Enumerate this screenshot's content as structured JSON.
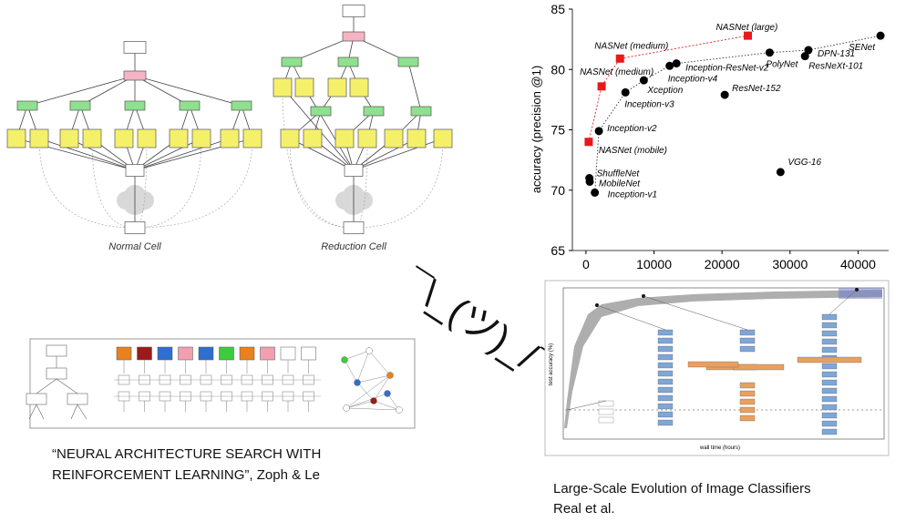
{
  "chart_data": {
    "type": "scatter",
    "ylabel": "accuracy (precision @1)",
    "xlim": [
      -2000,
      44500
    ],
    "xticks": [
      0,
      10000,
      20000,
      30000,
      40000
    ],
    "ylim": [
      65,
      85
    ],
    "yticks": [
      65,
      70,
      75,
      80,
      85
    ],
    "series": [
      {
        "color": "#000000",
        "marker": "circle",
        "x": [
          43300,
          32700,
          32200,
          27000,
          13300,
          12300,
          8500,
          5800,
          20400,
          1900,
          500,
          550,
          1300,
          28600
        ],
        "values": [
          82.8,
          81.6,
          81.1,
          81.4,
          80.5,
          80.3,
          79.1,
          78.1,
          77.9,
          74.9,
          71.0,
          70.7,
          69.8,
          71.5
        ],
        "labels": [
          "SENet",
          "DPN-131",
          "ResNeXt-101",
          "PolyNet",
          "Inception-ResNet-v2",
          "Inception-v4",
          "Xception",
          "Inception-v3",
          "ResNet-152",
          "Inception-v2",
          "ShuffleNet",
          "MobileNet",
          "Inception-v1",
          "VGG-16"
        ]
      },
      {
        "color": "#e8191a",
        "marker": "square",
        "line": true,
        "x": [
          23800,
          5000,
          2300,
          400
        ],
        "values": [
          82.8,
          80.9,
          78.6,
          74.0
        ],
        "labels": [
          "NASNet (large)",
          "NASNet (medium)",
          "NASNet (medium)",
          "NASNet (mobile)"
        ]
      }
    ]
  },
  "cells": {
    "normal": "Normal Cell",
    "reduction": "Reduction Cell"
  },
  "shrug": "¯\\_(ツ)_/¯",
  "evolution_figure": {
    "xlabel": "wall time (hours)",
    "ylabel": "test accuracy (%)"
  },
  "captions": {
    "left": [
      "“NEURAL ARCHITECTURE SEARCH WITH",
      "REINFORCEMENT LEARNING”, Zoph & Le"
    ],
    "right": [
      "Large-Scale Evolution of Image Classifiers",
      "Real et al."
    ]
  }
}
